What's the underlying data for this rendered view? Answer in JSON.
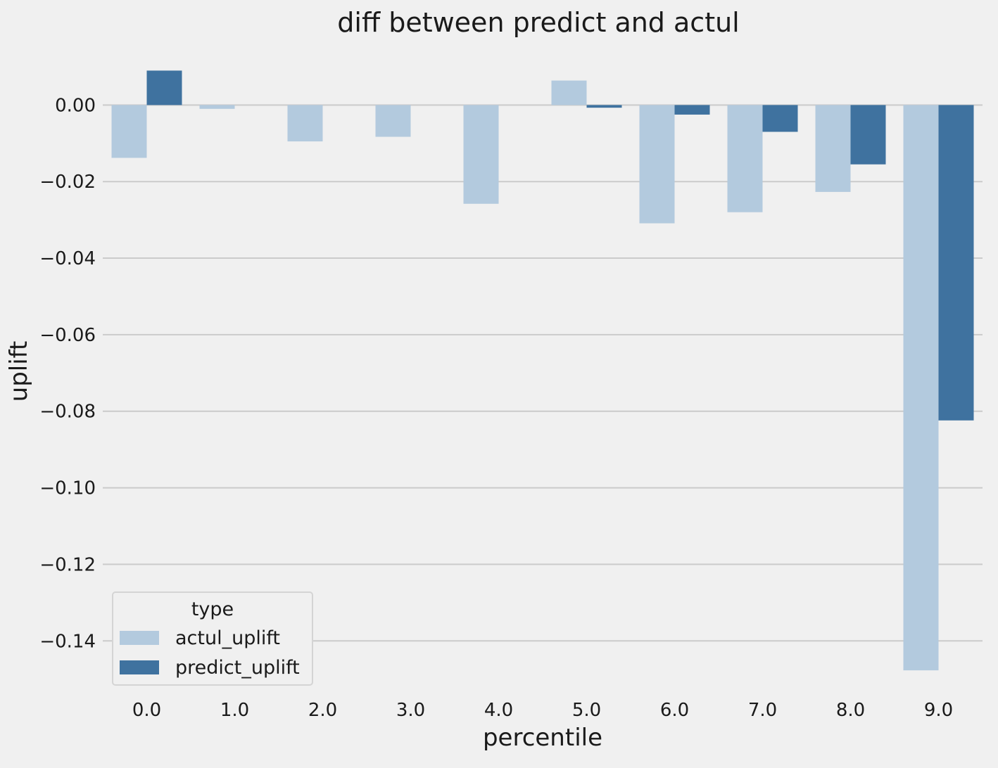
{
  "chart_data": {
    "type": "bar",
    "title": "diff between predict and actul",
    "xlabel": "percentile",
    "ylabel": "uplift",
    "categories": [
      "0.0",
      "1.0",
      "2.0",
      "3.0",
      "4.0",
      "5.0",
      "6.0",
      "7.0",
      "8.0",
      "9.0"
    ],
    "series": [
      {
        "name": "actul_uplift",
        "color": "#b3cade",
        "values": [
          -0.0138,
          -0.001,
          -0.0095,
          -0.0083,
          -0.0258,
          0.0064,
          -0.0309,
          -0.028,
          -0.0227,
          -0.1477
        ]
      },
      {
        "name": "predict_uplift",
        "color": "#3f729f",
        "values": [
          0.009,
          0.0,
          0.0,
          0.0,
          0.0,
          -0.0007,
          -0.0025,
          -0.007,
          -0.0155,
          -0.0824
        ]
      }
    ],
    "ylim": [
      -0.153,
      0.0155
    ],
    "yticks": [
      0.0,
      -0.02,
      -0.04,
      -0.06,
      -0.08,
      -0.1,
      -0.12,
      -0.14
    ],
    "ytick_labels": [
      "0.00",
      "−0.02",
      "−0.04",
      "−0.06",
      "−0.08",
      "−0.10",
      "−0.12",
      "−0.14"
    ],
    "grid": "horizontal",
    "legend": {
      "title": "type",
      "placement": "lower-left"
    }
  }
}
